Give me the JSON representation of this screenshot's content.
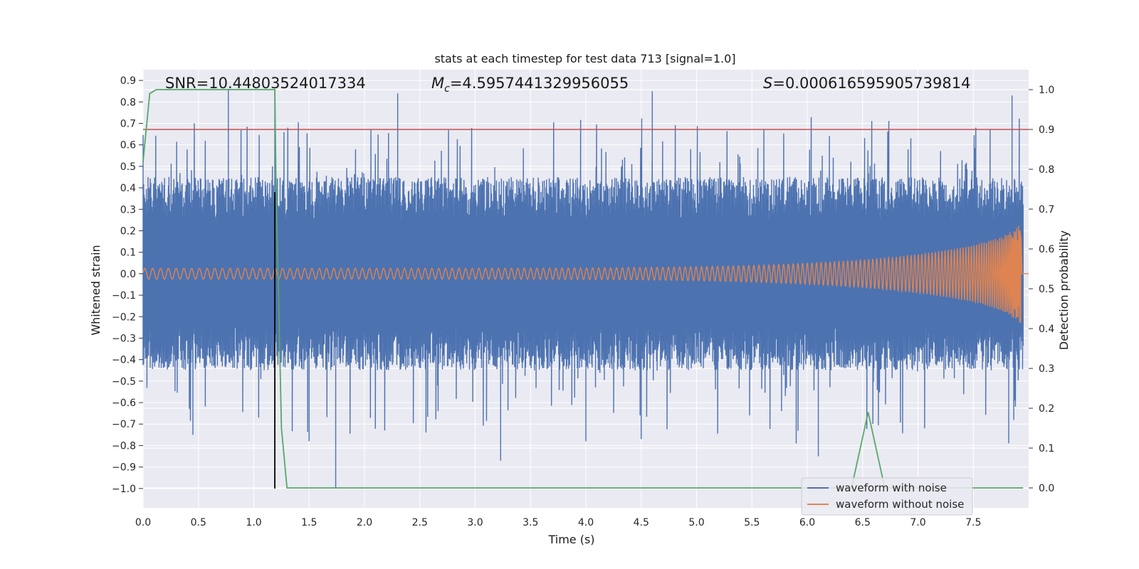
{
  "chart_data": {
    "type": "line",
    "title": "stats at each timestep for test data 713 [signal=1.0]",
    "xlabel": "Time (s)",
    "ylabel": "Whitened strain",
    "y2label": "Detection probability",
    "xlim": [
      0.0,
      8.0
    ],
    "ylim": [
      -1.09,
      0.95
    ],
    "y2lim": [
      -0.05,
      1.05
    ],
    "xticks": [
      "0.0",
      "0.5",
      "1.0",
      "1.5",
      "2.0",
      "2.5",
      "3.0",
      "3.5",
      "4.0",
      "4.5",
      "5.0",
      "5.5",
      "6.0",
      "6.5",
      "7.0",
      "7.5"
    ],
    "yticks": [
      "0.9",
      "0.8",
      "0.7",
      "0.6",
      "0.5",
      "0.4",
      "0.3",
      "0.2",
      "0.1",
      "0.0",
      "-0.1",
      "-0.2",
      "-0.3",
      "-0.4",
      "-0.5",
      "-0.6",
      "-0.7",
      "-0.8",
      "-0.9",
      "-1.0"
    ],
    "y2ticks": [
      "1.0",
      "0.9",
      "0.8",
      "0.7",
      "0.6",
      "0.5",
      "0.4",
      "0.3",
      "0.2",
      "0.1",
      "0.0"
    ],
    "annotations": {
      "snr_prefix": "SNR=",
      "snr_value": "10.44803524017334",
      "mc_symbol": "M",
      "mc_subscript": "c",
      "mc_value": "=4.5957441329956055",
      "s_symbol": "S",
      "s_value": "=0.000616595905739814"
    },
    "threshold_line": {
      "axis": "y2",
      "value": 0.9,
      "color": "#c44e52"
    },
    "marker_line": {
      "axis": "x",
      "value": 1.19,
      "y_from": -1.0,
      "y_to": 0.38,
      "color": "#000000"
    },
    "series": [
      {
        "name": "waveform with noise",
        "axis": "y",
        "color": "#4c72b0",
        "envelope": {
          "typical_max": 0.45,
          "typical_min": -0.45,
          "peak_max": 0.85,
          "peak_min": -1.0
        },
        "spikes": [
          [
            0.77,
            0.86
          ],
          [
            1.19,
            0.86
          ],
          [
            2.3,
            0.84
          ],
          [
            4.6,
            0.85
          ],
          [
            7.85,
            0.83
          ],
          [
            1.74,
            -1.0
          ],
          [
            3.23,
            -0.87
          ],
          [
            6.1,
            -0.85
          ],
          [
            7.82,
            -0.79
          ],
          [
            0.45,
            -0.75
          ],
          [
            4.5,
            -0.77
          ],
          [
            5.9,
            -0.79
          ],
          [
            1.5,
            -0.78
          ],
          [
            4.0,
            -0.78
          ]
        ]
      },
      {
        "name": "waveform without noise",
        "axis": "y",
        "color": "#dd8452",
        "chirp": {
          "start_amp": 0.025,
          "end_amp": 0.23,
          "merger_time": 7.93,
          "end_time": 8.0
        }
      },
      {
        "name": "detection probability",
        "axis": "y2",
        "color": "#55a868",
        "points": [
          [
            0.0,
            0.82
          ],
          [
            0.06,
            0.99
          ],
          [
            0.12,
            1.0
          ],
          [
            1.19,
            1.0
          ],
          [
            1.2,
            0.78
          ],
          [
            1.25,
            0.15
          ],
          [
            1.3,
            0.0
          ],
          [
            1.35,
            0.0
          ],
          [
            6.4,
            0.0
          ],
          [
            6.55,
            0.19
          ],
          [
            6.7,
            0.0
          ],
          [
            7.95,
            0.0
          ]
        ]
      }
    ],
    "legend": {
      "position": "lower-right",
      "entries": [
        {
          "label": "waveform with noise",
          "color": "#4c72b0"
        },
        {
          "label": "waveform without noise",
          "color": "#dd8452"
        }
      ]
    },
    "style": {
      "background": "#eaeaf2",
      "grid": "#ffffff",
      "grid_on": true
    }
  }
}
